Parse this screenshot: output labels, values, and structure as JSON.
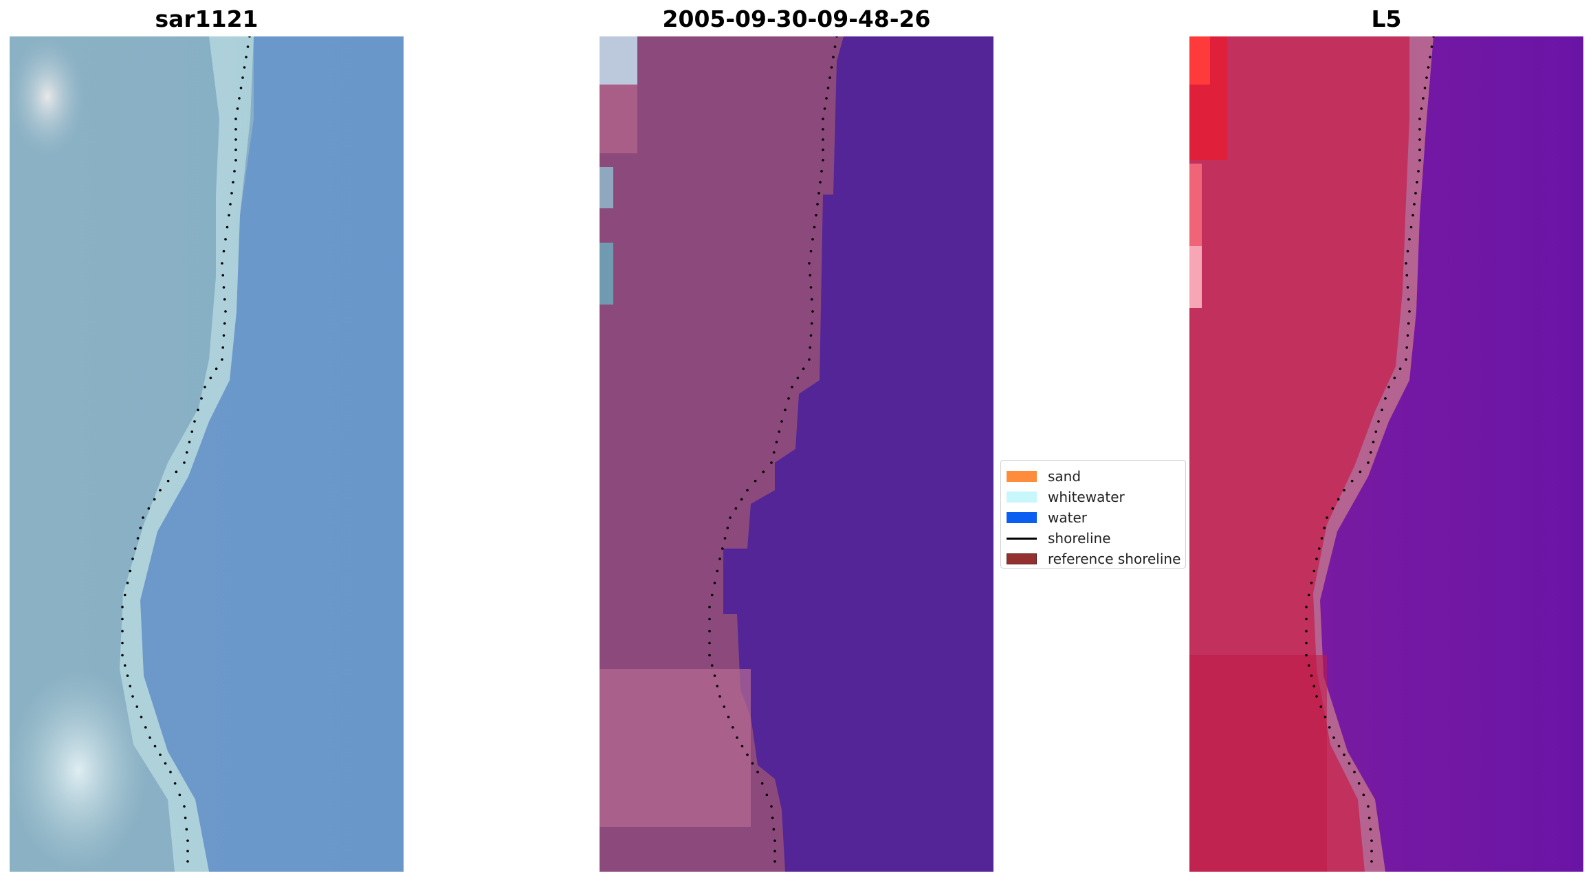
{
  "panels": [
    {
      "title": "sar1121"
    },
    {
      "title": "2005-09-30-09-48-26"
    },
    {
      "title": "L5"
    }
  ],
  "legend": {
    "items": [
      {
        "label": "sand",
        "color": "#fd8d3c",
        "kind": "patch"
      },
      {
        "label": "whitewater",
        "color": "#c8f7fb",
        "kind": "patch"
      },
      {
        "label": "water",
        "color": "#0a5ef0",
        "kind": "patch"
      },
      {
        "label": "shoreline",
        "color": "#000000",
        "kind": "line"
      },
      {
        "label": "reference shoreline",
        "color": "#943030",
        "kind": "patch-outlined"
      }
    ]
  },
  "colors": {
    "rgb_water": "#6a99cb",
    "rgb_land": "#8fb3c4",
    "class_water": "#532596",
    "class_land": "#8c4a7c",
    "ndwi_water": "#6d18a0",
    "ndwi_land": "#c52c5c",
    "shoreline_points": "#000000"
  }
}
